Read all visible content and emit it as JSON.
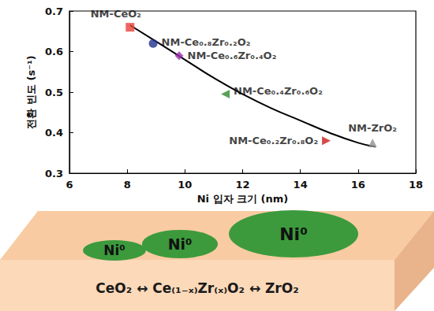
{
  "chart_data": {
    "type": "scatter",
    "x_label": "Ni 입자 크기 (nm)",
    "y_label": "전환 빈도 (s⁻¹)",
    "xlim": [
      6,
      18
    ],
    "xticks": [
      6,
      8,
      10,
      12,
      14,
      16,
      18
    ],
    "ylim": [
      0.3,
      0.7
    ],
    "yticks": [
      0.3,
      0.4,
      0.5,
      0.6,
      0.7
    ],
    "grid": false,
    "series": [
      {
        "name": "NM-CeO₂",
        "color": "#e8413a",
        "marker": "square",
        "x": [
          8.1
        ],
        "values": [
          0.66
        ]
      },
      {
        "name": "NM-Ce₀.₈Zr₀.₂O₂",
        "color": "#1f2f8c",
        "marker": "circle",
        "x": [
          8.9
        ],
        "values": [
          0.62
        ]
      },
      {
        "name": "NM-Ce₀.₆Zr₀.₄O₂",
        "color": "#9b30b0",
        "marker": "diamond",
        "x": [
          9.8
        ],
        "values": [
          0.59
        ]
      },
      {
        "name": "NM-Ce₀.₄Zr₀.₆O₂",
        "color": "#2e8b2e",
        "marker": "triangle-left",
        "x": [
          11.4
        ],
        "values": [
          0.495
        ]
      },
      {
        "name": "NM-Ce₀.₂Zr₀.₈O₂",
        "color": "#c81e1e",
        "marker": "triangle-right",
        "x": [
          14.9
        ],
        "values": [
          0.38
        ]
      },
      {
        "name": "NM-ZrO₂",
        "color": "#909090",
        "marker": "triangle",
        "x": [
          16.5
        ],
        "values": [
          0.375
        ]
      },
      {
        "type": "line",
        "color": "#000000",
        "line_style": "solid",
        "x": [
          8.1,
          9,
          10,
          11,
          12,
          13,
          14,
          15,
          16,
          16.6
        ],
        "values": [
          0.665,
          0.625,
          0.58,
          0.535,
          0.495,
          0.46,
          0.43,
          0.4,
          0.375,
          0.365
        ]
      }
    ]
  },
  "diagram": {
    "particles": [
      "Ni⁰",
      "Ni⁰",
      "Ni⁰"
    ],
    "support": "CeO₂ ↔ Ce₍₁₋ₓ₎Zr₍ₓ₎O₂ ↔ ZrO₂"
  }
}
